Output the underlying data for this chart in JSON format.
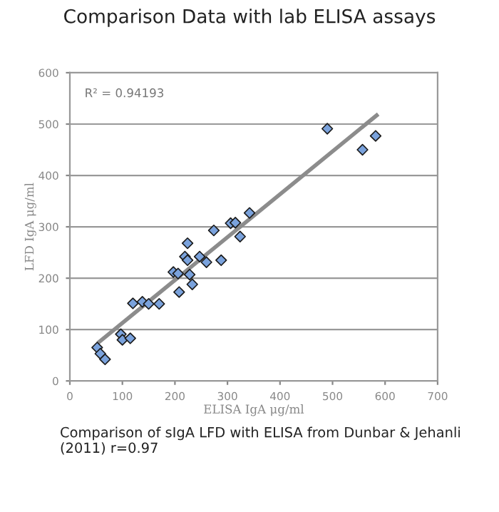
{
  "chart_data": {
    "type": "scatter",
    "title": "Comparison Data with lab ELISA assays",
    "xlabel": "ELISA IgA μg/ml",
    "ylabel": "LFD IgA μg/ml",
    "annotations": [
      "R² = 0.94193",
      "Comparison of sIgA LFD with ELISA from Dunbar & Jehanli (2011) r=0.97"
    ],
    "series": [
      {
        "color": "#7aa2dc",
        "marker": "diamond",
        "x": [
          52,
          58,
          67,
          97,
          100,
          115,
          120,
          138,
          150,
          170,
          197,
          206,
          208,
          219,
          224,
          224,
          228,
          233,
          247,
          260,
          274,
          288,
          306,
          315,
          324,
          342,
          490,
          557,
          582
        ],
        "values": [
          65,
          53,
          42,
          91,
          80,
          83,
          151,
          154,
          150,
          150,
          212,
          209,
          173,
          242,
          268,
          235,
          207,
          188,
          242,
          231,
          293,
          235,
          307,
          308,
          281,
          327,
          491,
          450,
          477
        ]
      },
      {
        "type": "line",
        "color": "#8c8c8c",
        "marker": "none",
        "x": [
          56,
          584
        ],
        "values": [
          76,
          517
        ]
      }
    ],
    "xlim": [
      0,
      700
    ],
    "ylim": [
      0,
      600
    ],
    "xticks": [
      0,
      100,
      200,
      300,
      400,
      500,
      600,
      700
    ],
    "yticks": [
      0,
      100,
      200,
      300,
      400,
      500,
      600
    ],
    "grid": "y",
    "legend": false
  }
}
